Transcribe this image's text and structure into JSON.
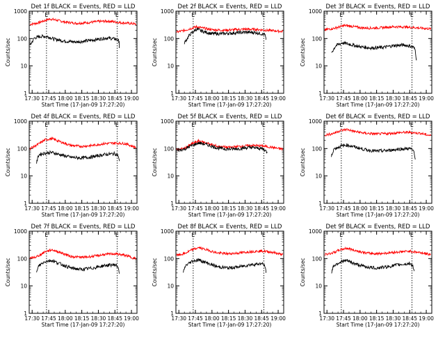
{
  "chart_data": [
    {
      "type": "line",
      "title": "Det 1f BLACK = Events, RED = LLD",
      "ylabel": "Counts/sec",
      "xlabel": "Start Time (17-Jan-09 17:27:20)",
      "xticks": [
        "17:30",
        "17:45",
        "18:00",
        "18:15",
        "18:30",
        "18:45",
        "19:00"
      ],
      "yticks": [
        "1",
        "10",
        "100",
        "1000"
      ],
      "yscale": "log",
      "ylim": [
        1,
        1000
      ],
      "xlim": [
        "17:27:20",
        "19:05"
      ],
      "markers": [
        {
          "time": "17:43",
          "label": "E"
        },
        {
          "time": "18:47",
          "label": "E"
        }
      ],
      "series": [
        {
          "color": "#ff0000",
          "x": [
            "17:28",
            "17:35",
            "17:42",
            "17:46",
            "17:52",
            "18:00",
            "18:10",
            "18:20",
            "18:30",
            "18:40",
            "18:50",
            "18:58",
            "19:04"
          ],
          "y": [
            330,
            370,
            460,
            520,
            470,
            400,
            360,
            380,
            420,
            430,
            380,
            360,
            340
          ]
        },
        {
          "color": "#000000",
          "x": [
            "17:28",
            "17:32",
            "17:38",
            "17:44",
            "17:50",
            "18:00",
            "18:10",
            "18:20",
            "18:30",
            "18:38",
            "18:46",
            "18:49",
            "18:49"
          ],
          "y": [
            55,
            105,
            120,
            118,
            95,
            80,
            75,
            82,
            95,
            105,
            95,
            80,
            45
          ]
        }
      ]
    },
    {
      "type": "line",
      "title": "Det 2f BLACK = Events, RED = LLD",
      "ylabel": "Counts/sec",
      "xlabel": "Start Time (17-Jan-09 17:27:20)",
      "xticks": [
        "17:30",
        "17:45",
        "18:00",
        "18:15",
        "18:30",
        "18:45",
        "19:00"
      ],
      "yticks": [
        "1",
        "10",
        "100",
        "1000"
      ],
      "yscale": "log",
      "ylim": [
        1,
        1000
      ],
      "xlim": [
        "17:27:20",
        "19:05"
      ],
      "markers": [
        {
          "time": "17:43",
          "label": "E"
        },
        {
          "time": "18:47",
          "label": "E"
        }
      ],
      "series": [
        {
          "color": "#ff0000",
          "x": [
            "17:28",
            "17:35",
            "17:42",
            "17:46",
            "17:52",
            "18:00",
            "18:10",
            "18:20",
            "18:30",
            "18:40",
            "18:50",
            "18:58",
            "19:04"
          ],
          "y": [
            170,
            200,
            240,
            270,
            240,
            210,
            200,
            210,
            220,
            215,
            200,
            190,
            180
          ]
        },
        {
          "color": "#000000",
          "x": [
            "17:35",
            "17:40",
            "17:46",
            "17:52",
            "18:00",
            "18:10",
            "18:20",
            "18:30",
            "18:40",
            "18:48",
            "18:49"
          ],
          "y": [
            70,
            140,
            220,
            180,
            150,
            150,
            160,
            170,
            165,
            140,
            90
          ]
        }
      ]
    },
    {
      "type": "line",
      "title": "Det 3f BLACK = Events, RED = LLD",
      "ylabel": "Counts/sec",
      "xlabel": "Start Time (17-Jan-09 17:27:20)",
      "xticks": [
        "17:30",
        "17:45",
        "18:00",
        "18:15",
        "18:30",
        "18:45",
        "19:00"
      ],
      "yticks": [
        "1",
        "10",
        "100",
        "1000"
      ],
      "yscale": "log",
      "ylim": [
        1,
        1000
      ],
      "xlim": [
        "17:27:20",
        "19:05"
      ],
      "markers": [
        {
          "time": "17:43",
          "label": "E"
        },
        {
          "time": "18:47",
          "label": "E"
        }
      ],
      "series": [
        {
          "color": "#ff0000",
          "x": [
            "17:28",
            "17:35",
            "17:42",
            "17:46",
            "17:52",
            "18:00",
            "18:10",
            "18:20",
            "18:30",
            "18:40",
            "18:50",
            "18:58",
            "19:04"
          ],
          "y": [
            210,
            230,
            270,
            300,
            280,
            250,
            240,
            250,
            270,
            265,
            250,
            235,
            225
          ]
        },
        {
          "color": "#000000",
          "x": [
            "17:34",
            "17:38",
            "17:44",
            "17:50",
            "18:00",
            "18:10",
            "18:20",
            "18:30",
            "18:40",
            "18:48",
            "18:50",
            "18:51"
          ],
          "y": [
            30,
            55,
            70,
            62,
            50,
            45,
            47,
            55,
            58,
            50,
            38,
            18
          ]
        }
      ]
    },
    {
      "type": "line",
      "title": "Det 4f BLACK = Events, RED = LLD",
      "ylabel": "Counts/sec",
      "xlabel": "Start Time (17-Jan-09 17:27:20)",
      "xticks": [
        "17:30",
        "17:45",
        "18:00",
        "18:15",
        "18:30",
        "18:45",
        "19:00"
      ],
      "yticks": [
        "1",
        "10",
        "100",
        "1000"
      ],
      "yscale": "log",
      "ylim": [
        1,
        1000
      ],
      "xlim": [
        "17:27:20",
        "19:05"
      ],
      "markers": [
        {
          "time": "17:43",
          "label": "E"
        },
        {
          "time": "18:47",
          "label": "E"
        }
      ],
      "series": [
        {
          "color": "#ff0000",
          "x": [
            "17:28",
            "17:35",
            "17:42",
            "17:48",
            "17:55",
            "18:05",
            "18:15",
            "18:25",
            "18:35",
            "18:45",
            "18:55",
            "19:00",
            "19:04"
          ],
          "y": [
            100,
            140,
            210,
            230,
            180,
            130,
            120,
            130,
            150,
            160,
            150,
            125,
            110
          ]
        },
        {
          "color": "#000000",
          "x": [
            "17:34",
            "17:36",
            "17:42",
            "17:48",
            "17:55",
            "18:05",
            "18:15",
            "18:25",
            "18:35",
            "18:45",
            "18:48",
            "18:49"
          ],
          "y": [
            30,
            60,
            68,
            72,
            60,
            48,
            45,
            50,
            60,
            65,
            55,
            35
          ]
        }
      ]
    },
    {
      "type": "line",
      "title": "Det 5f BLACK = Events, RED = LLD",
      "ylabel": "Counts/sec",
      "xlabel": "Start Time (17-Jan-09 17:27:20)",
      "xticks": [
        "17:30",
        "17:45",
        "18:00",
        "18:15",
        "18:30",
        "18:45",
        "19:00"
      ],
      "yticks": [
        "1",
        "10",
        "100",
        "1000"
      ],
      "yscale": "log",
      "ylim": [
        1,
        1000
      ],
      "xlim": [
        "17:27:20",
        "19:05"
      ],
      "markers": [
        {
          "time": "17:43",
          "label": "E"
        },
        {
          "time": "18:47",
          "label": "E"
        }
      ],
      "series": [
        {
          "color": "#ff0000",
          "x": [
            "17:28",
            "17:35",
            "17:42",
            "17:48",
            "17:55",
            "18:05",
            "18:15",
            "18:25",
            "18:35",
            "18:45",
            "18:55",
            "19:00",
            "19:04"
          ],
          "y": [
            90,
            100,
            150,
            190,
            160,
            120,
            110,
            120,
            130,
            125,
            110,
            100,
            95
          ]
        },
        {
          "color": "#000000",
          "x": [
            "17:28",
            "17:35",
            "17:42",
            "17:48",
            "17:55",
            "18:05",
            "18:15",
            "18:25",
            "18:35",
            "18:45",
            "18:48",
            "18:50"
          ],
          "y": [
            85,
            95,
            130,
            160,
            140,
            105,
            95,
            100,
            110,
            100,
            90,
            70
          ]
        }
      ]
    },
    {
      "type": "line",
      "title": "Det 6f BLACK = Events, RED = LLD",
      "ylabel": "Counts/sec",
      "xlabel": "Start Time (17-Jan-09 17:27:20)",
      "xticks": [
        "17:30",
        "17:45",
        "18:00",
        "18:15",
        "18:30",
        "18:45",
        "19:00"
      ],
      "yticks": [
        "1",
        "10",
        "100",
        "1000"
      ],
      "yscale": "log",
      "ylim": [
        1,
        1000
      ],
      "xlim": [
        "17:27:20",
        "19:05"
      ],
      "markers": [
        {
          "time": "17:43",
          "label": "E"
        },
        {
          "time": "18:47",
          "label": "E"
        }
      ],
      "series": [
        {
          "color": "#ff0000",
          "x": [
            "17:28",
            "17:35",
            "17:42",
            "17:48",
            "17:55",
            "18:05",
            "18:15",
            "18:25",
            "18:35",
            "18:45",
            "18:55",
            "19:00",
            "19:04"
          ],
          "y": [
            310,
            350,
            450,
            500,
            420,
            360,
            340,
            350,
            380,
            390,
            360,
            320,
            300
          ]
        },
        {
          "color": "#000000",
          "x": [
            "17:34",
            "17:36",
            "17:42",
            "17:48",
            "17:55",
            "18:05",
            "18:15",
            "18:25",
            "18:35",
            "18:45",
            "18:49",
            "18:50"
          ],
          "y": [
            50,
            95,
            120,
            135,
            115,
            90,
            80,
            85,
            95,
            100,
            80,
            40
          ]
        }
      ]
    },
    {
      "type": "line",
      "title": "Det 7f BLACK = Events, RED = LLD",
      "ylabel": "Counts/sec",
      "xlabel": "Start Time (17-Jan-09 17:27:20)",
      "xticks": [
        "17:30",
        "17:45",
        "18:00",
        "18:15",
        "18:30",
        "18:45",
        "19:00"
      ],
      "yticks": [
        "1",
        "10",
        "100",
        "1000"
      ],
      "yscale": "log",
      "ylim": [
        1,
        1000
      ],
      "xlim": [
        "17:27:20",
        "19:05"
      ],
      "markers": [
        {
          "time": "17:43",
          "label": "E"
        },
        {
          "time": "18:47",
          "label": "E"
        }
      ],
      "series": [
        {
          "color": "#ff0000",
          "x": [
            "17:28",
            "17:35",
            "17:42",
            "17:48",
            "17:55",
            "18:05",
            "18:15",
            "18:25",
            "18:35",
            "18:45",
            "18:55",
            "19:00",
            "19:04"
          ],
          "y": [
            100,
            120,
            180,
            210,
            170,
            120,
            110,
            120,
            140,
            150,
            130,
            110,
            100
          ]
        },
        {
          "color": "#000000",
          "x": [
            "17:34",
            "17:36",
            "17:42",
            "17:48",
            "17:55",
            "18:05",
            "18:15",
            "18:25",
            "18:35",
            "18:45",
            "18:48",
            "18:49"
          ],
          "y": [
            30,
            55,
            80,
            85,
            65,
            45,
            40,
            45,
            55,
            60,
            50,
            30
          ]
        }
      ]
    },
    {
      "type": "line",
      "title": "Det 8f BLACK = Events, RED = LLD",
      "ylabel": "Counts/sec",
      "xlabel": "Start Time (17-Jan-09 17:27:20)",
      "xticks": [
        "17:30",
        "17:45",
        "18:00",
        "18:15",
        "18:30",
        "18:45",
        "19:00"
      ],
      "yticks": [
        "1",
        "10",
        "100",
        "1000"
      ],
      "yscale": "log",
      "ylim": [
        1,
        1000
      ],
      "xlim": [
        "17:27:20",
        "19:05"
      ],
      "markers": [
        {
          "time": "17:43",
          "label": "E"
        },
        {
          "time": "18:47",
          "label": "E"
        }
      ],
      "series": [
        {
          "color": "#ff0000",
          "x": [
            "17:28",
            "17:35",
            "17:42",
            "17:48",
            "17:55",
            "18:05",
            "18:15",
            "18:25",
            "18:35",
            "18:45",
            "18:55",
            "19:00",
            "19:04"
          ],
          "y": [
            130,
            150,
            210,
            250,
            210,
            160,
            150,
            160,
            180,
            190,
            170,
            150,
            140
          ]
        },
        {
          "color": "#000000",
          "x": [
            "17:34",
            "17:36",
            "17:42",
            "17:48",
            "17:55",
            "18:05",
            "18:15",
            "18:25",
            "18:35",
            "18:45",
            "18:48",
            "18:49"
          ],
          "y": [
            30,
            55,
            80,
            90,
            70,
            50,
            45,
            50,
            60,
            65,
            55,
            30
          ]
        }
      ]
    },
    {
      "type": "line",
      "title": "Det 9f BLACK = Events, RED = LLD",
      "ylabel": "Counts/sec",
      "xlabel": "Start Time (17-Jan-09 17:27:20)",
      "xticks": [
        "17:30",
        "17:45",
        "18:00",
        "18:15",
        "18:30",
        "18:45",
        "19:00"
      ],
      "yticks": [
        "1",
        "10",
        "100",
        "1000"
      ],
      "yscale": "log",
      "ylim": [
        1,
        1000
      ],
      "xlim": [
        "17:27:20",
        "19:05"
      ],
      "markers": [
        {
          "time": "17:43",
          "label": "E"
        },
        {
          "time": "18:47",
          "label": "E"
        }
      ],
      "series": [
        {
          "color": "#ff0000",
          "x": [
            "17:28",
            "17:35",
            "17:42",
            "17:48",
            "17:55",
            "18:05",
            "18:15",
            "18:25",
            "18:35",
            "18:45",
            "18:55",
            "19:00",
            "19:04"
          ],
          "y": [
            140,
            160,
            210,
            240,
            200,
            160,
            150,
            160,
            175,
            185,
            165,
            150,
            140
          ]
        },
        {
          "color": "#000000",
          "x": [
            "17:34",
            "17:36",
            "17:42",
            "17:48",
            "17:55",
            "18:05",
            "18:15",
            "18:25",
            "18:35",
            "18:45",
            "18:48",
            "18:49"
          ],
          "y": [
            30,
            55,
            75,
            85,
            65,
            50,
            45,
            50,
            60,
            65,
            55,
            35
          ]
        }
      ]
    }
  ]
}
